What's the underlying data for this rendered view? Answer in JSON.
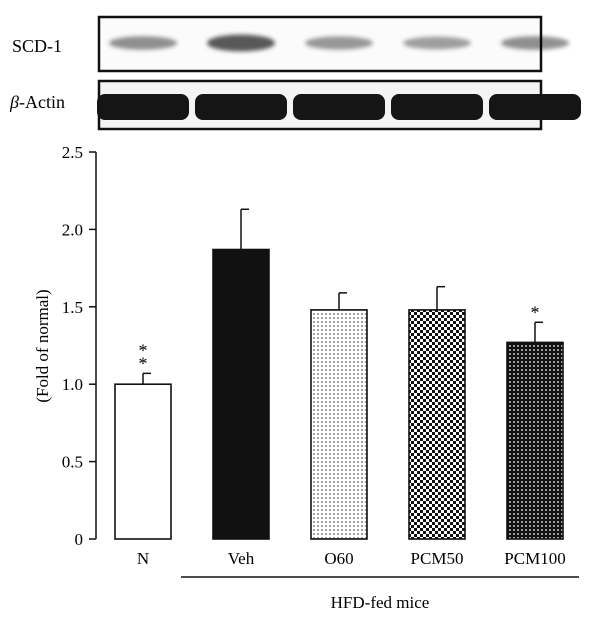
{
  "blots": [
    {
      "label": "SCD-1",
      "italic_prefix": "",
      "suffix": "SCD-1",
      "style": "faint",
      "intensities": [
        0.45,
        0.85,
        0.4,
        0.35,
        0.45
      ]
    },
    {
      "label": "β-Actin",
      "italic_prefix": "β",
      "suffix": "-Actin",
      "style": "dense",
      "intensities": [
        1,
        1,
        1,
        1,
        1
      ]
    }
  ],
  "chart_data": {
    "type": "bar",
    "categories": [
      "N",
      "Veh",
      "O60",
      "PCM50",
      "PCM100"
    ],
    "values": [
      1.0,
      1.87,
      1.48,
      1.48,
      1.27
    ],
    "errors": [
      0.07,
      0.26,
      0.11,
      0.15,
      0.13
    ],
    "significance": [
      "* *",
      "",
      "",
      "",
      "*"
    ],
    "fills": [
      "white",
      "black",
      "fine-dots",
      "checker",
      "dense-dots"
    ],
    "ylabel": "(Fold of normal)",
    "xlabel": "",
    "ylim": [
      0,
      2.5
    ],
    "yticks": [
      0,
      0.5,
      1.0,
      1.5,
      2.0,
      2.5
    ],
    "ytick_labels": [
      "0",
      "0.5",
      "1.0",
      "1.5",
      "2.0",
      "2.5"
    ],
    "group_label": "HFD-fed mice",
    "group_categories": [
      "Veh",
      "O60",
      "PCM50",
      "PCM100"
    ],
    "title": ""
  }
}
